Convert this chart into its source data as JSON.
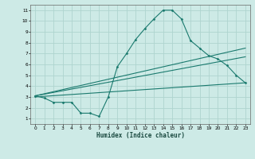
{
  "title": "",
  "xlabel": "Humidex (Indice chaleur)",
  "ylabel": "",
  "bg_color": "#cdeae6",
  "grid_color": "#afd4cf",
  "line_color": "#1a7a6e",
  "xlim": [
    -0.5,
    23.5
  ],
  "ylim": [
    0.5,
    11.5
  ],
  "xticks": [
    0,
    1,
    2,
    3,
    4,
    5,
    6,
    7,
    8,
    9,
    10,
    11,
    12,
    13,
    14,
    15,
    16,
    17,
    18,
    19,
    20,
    21,
    22,
    23
  ],
  "yticks": [
    1,
    2,
    3,
    4,
    5,
    6,
    7,
    8,
    9,
    10,
    11
  ],
  "series1_x": [
    0,
    1,
    2,
    3,
    4,
    5,
    6,
    7,
    8,
    9,
    10,
    11,
    12,
    13,
    14,
    15,
    16,
    17,
    18,
    19,
    20,
    21,
    22,
    23
  ],
  "series1_y": [
    3.1,
    2.9,
    2.5,
    2.5,
    2.5,
    1.5,
    1.5,
    1.2,
    3.0,
    5.8,
    7.0,
    8.3,
    9.3,
    10.2,
    11.0,
    11.0,
    10.2,
    8.2,
    7.5,
    6.8,
    6.5,
    5.9,
    5.0,
    4.3
  ],
  "series2_x": [
    0,
    23
  ],
  "series2_y": [
    3.1,
    7.5
  ],
  "series3_x": [
    0,
    23
  ],
  "series3_y": [
    3.1,
    6.7
  ],
  "series4_x": [
    0,
    23
  ],
  "series4_y": [
    3.0,
    4.3
  ]
}
